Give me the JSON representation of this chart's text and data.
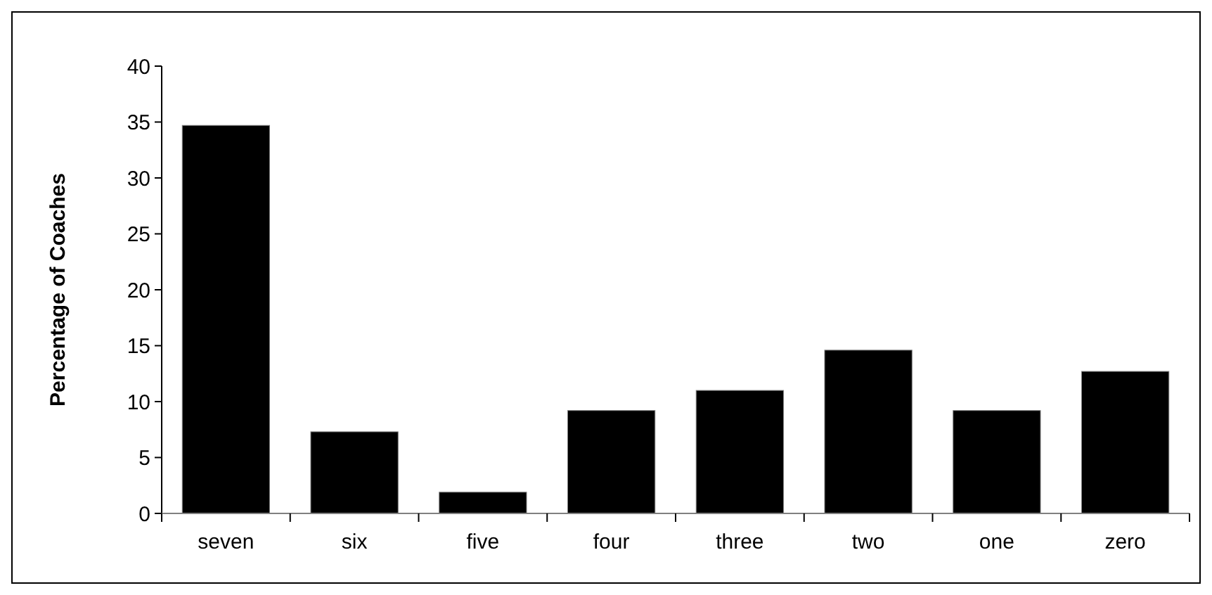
{
  "chart_data": {
    "type": "bar",
    "ylabel": "Percentage of Coaches",
    "categories": [
      "seven",
      "six",
      "five",
      "four",
      "three",
      "two",
      "one",
      "zero"
    ],
    "values": [
      34.7,
      7.3,
      1.9,
      9.2,
      11.0,
      14.6,
      9.2,
      12.7
    ],
    "color": "#000000",
    "ylim": [
      0,
      40
    ],
    "yticks": [
      0,
      5,
      10,
      15,
      20,
      25,
      30,
      35,
      40
    ],
    "grid": false
  }
}
